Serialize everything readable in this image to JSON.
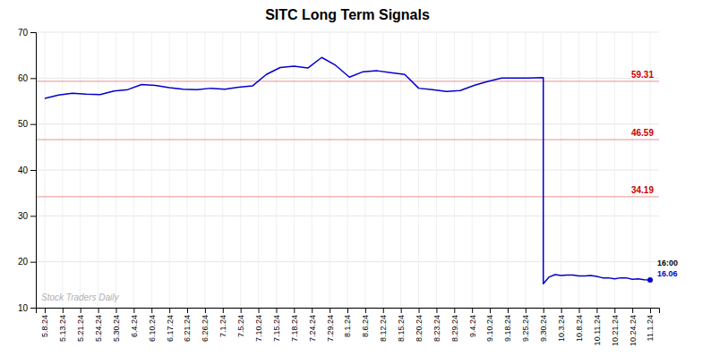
{
  "chart_data": {
    "type": "line",
    "title": "SITC Long Term Signals",
    "x": [
      0,
      0.777777777777778,
      1.55555555555556,
      2.33333333333333,
      3.11111111111111,
      3.88888888888889,
      4.66666666666667,
      5.44444444444444,
      6.22222222222222,
      7,
      7.77777777777778,
      8.55555555555556,
      9.33333333333333,
      10.1111111111111,
      10.8888888888889,
      11.6666666666667,
      12.4444444444444,
      13.2222222222222,
      14,
      14.7777777777778,
      15.5555555555556,
      16.3333333333333,
      17.1111111111111,
      17.8888888888889,
      18.6666666666667,
      19.4444444444444,
      20.2222222222222,
      21,
      21.7777777777778,
      22.5555555555556,
      23.3333333333333,
      24.1111111111111,
      24.8888888888889,
      25.6666666666667,
      26.4444444444444,
      27.2222222222222,
      28,
      28,
      28.3333333333333,
      28.6666666666667,
      29,
      29.3333333333333,
      29.6666666666667,
      30,
      30.3333333333333,
      30.6666666666667,
      31,
      31.3333333333333,
      31.6666666666667,
      32,
      32.3333333333333,
      32.6666666666667,
      33,
      33.3333333333333,
      33.6666666666667,
      34
    ],
    "series": [
      {
        "name": "SITC",
        "color": "#0000cc",
        "values": [
          55.6,
          56.3,
          56.7,
          56.5,
          56.4,
          57.2,
          57.5,
          58.6,
          58.4,
          57.9,
          57.6,
          57.5,
          57.8,
          57.6,
          58.0,
          58.3,
          60.8,
          62.3,
          62.6,
          62.2,
          64.5,
          62.8,
          60.2,
          61.4,
          61.6,
          61.2,
          60.8,
          57.8,
          57.5,
          57.1,
          57.3,
          58.4,
          59.3,
          60.0,
          60.0,
          60.0,
          60.1,
          15.2,
          16.7,
          17.2,
          17.0,
          17.1,
          17.1,
          16.9,
          16.9,
          17.0,
          16.8,
          16.5,
          16.5,
          16.3,
          16.5,
          16.5,
          16.2,
          16.3,
          16.1,
          16.06
        ]
      }
    ],
    "xlim": [
      -0.5,
      34.5
    ],
    "xticks": [
      {
        "value": 0,
        "label": "5.8.24"
      },
      {
        "value": 1,
        "label": "5.13.24"
      },
      {
        "value": 2,
        "label": "5.21.24"
      },
      {
        "value": 3,
        "label": "5.24.24"
      },
      {
        "value": 4,
        "label": "5.30.24"
      },
      {
        "value": 5,
        "label": "6.4.24"
      },
      {
        "value": 6,
        "label": "6.10.24"
      },
      {
        "value": 7,
        "label": "6.17.24"
      },
      {
        "value": 8,
        "label": "6.21.24"
      },
      {
        "value": 9,
        "label": "6.26.24"
      },
      {
        "value": 10,
        "label": "7.1.24"
      },
      {
        "value": 11,
        "label": "7.5.24"
      },
      {
        "value": 12,
        "label": "7.10.24"
      },
      {
        "value": 13,
        "label": "7.15.24"
      },
      {
        "value": 14,
        "label": "7.18.24"
      },
      {
        "value": 15,
        "label": "7.24.24"
      },
      {
        "value": 16,
        "label": "7.29.24"
      },
      {
        "value": 17,
        "label": "8.1.24"
      },
      {
        "value": 18,
        "label": "8.6.24"
      },
      {
        "value": 19,
        "label": "8.12.24"
      },
      {
        "value": 20,
        "label": "8.15.24"
      },
      {
        "value": 21,
        "label": "8.20.24"
      },
      {
        "value": 22,
        "label": "8.23.24"
      },
      {
        "value": 23,
        "label": "8.29.24"
      },
      {
        "value": 24,
        "label": "9.4.24"
      },
      {
        "value": 25,
        "label": "9.10.24"
      },
      {
        "value": 26,
        "label": "9.18.24"
      },
      {
        "value": 27,
        "label": "9.25.24"
      },
      {
        "value": 28,
        "label": "9.30.24"
      },
      {
        "value": 29,
        "label": "10.3.24"
      },
      {
        "value": 30,
        "label": "10.8.24"
      },
      {
        "value": 31,
        "label": "10.11.24"
      },
      {
        "value": 32,
        "label": "10.21.24"
      },
      {
        "value": 33,
        "label": "10.24.24"
      },
      {
        "value": 34,
        "label": "11.1.24"
      }
    ],
    "ylim": [
      10,
      70
    ],
    "yticks": [
      10,
      20,
      30,
      40,
      50,
      60,
      70
    ],
    "grid": true,
    "hlines": {
      "values": [
        59.31,
        46.59,
        34.19
      ],
      "color": "#cc0000"
    },
    "annotations": [
      "16:00",
      "Stock Traders Daily"
    ]
  }
}
